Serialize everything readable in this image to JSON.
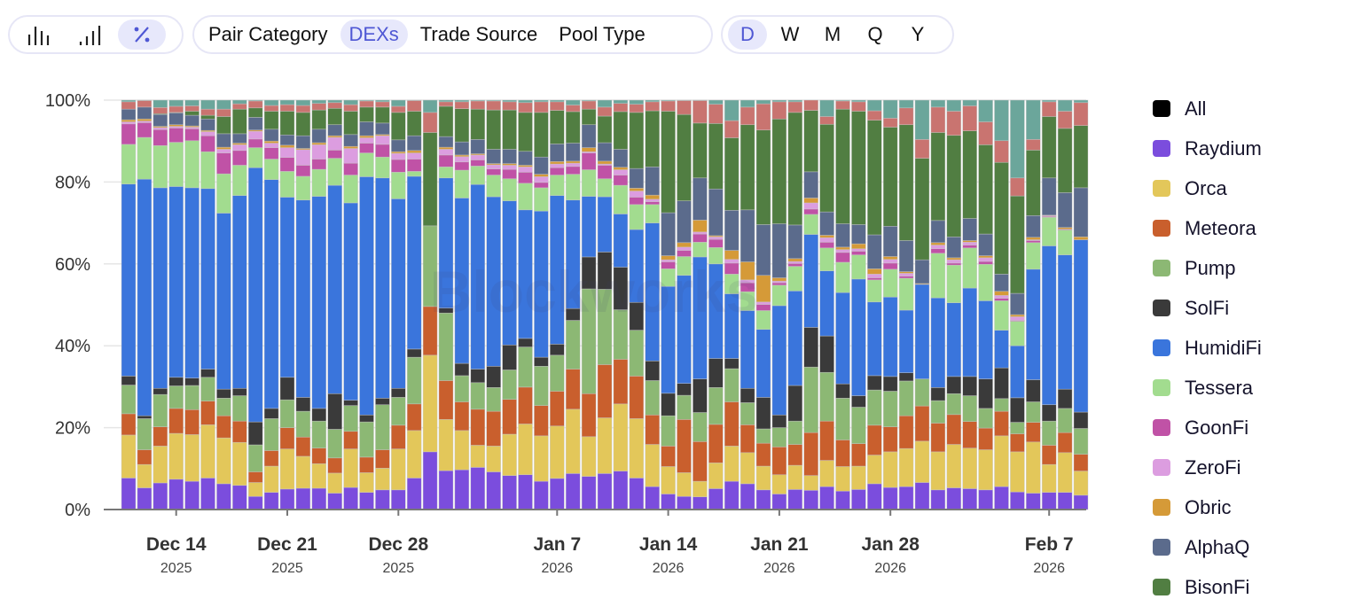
{
  "toolbar": {
    "chart_modes": [
      {
        "name": "grouped-bars-icon",
        "active": false
      },
      {
        "name": "stacked-bars-icon",
        "active": false
      },
      {
        "name": "percent-icon",
        "active": true
      }
    ],
    "breakdowns": [
      {
        "label": "Pair Category",
        "active": false
      },
      {
        "label": "DEXs",
        "active": true
      },
      {
        "label": "Trade Source",
        "active": false
      },
      {
        "label": "Pool Type",
        "active": false
      }
    ],
    "intervals": [
      {
        "label": "D",
        "active": true
      },
      {
        "label": "W",
        "active": false
      },
      {
        "label": "M",
        "active": false
      },
      {
        "label": "Q",
        "active": false
      },
      {
        "label": "Y",
        "active": false
      }
    ]
  },
  "legend": [
    {
      "label": "All",
      "color": "#000000"
    },
    {
      "label": "Raydium",
      "color": "#7b4ddd"
    },
    {
      "label": "Orca",
      "color": "#e3c75a"
    },
    {
      "label": "Meteora",
      "color": "#c95f2d"
    },
    {
      "label": "Pump",
      "color": "#8cb874"
    },
    {
      "label": "SolFi",
      "color": "#3a3a3a"
    },
    {
      "label": "HumidiFi",
      "color": "#3a75dc"
    },
    {
      "label": "Tessera",
      "color": "#a2dc8f"
    },
    {
      "label": "GoonFi",
      "color": "#c052a6"
    },
    {
      "label": "ZeroFi",
      "color": "#dc9de0"
    },
    {
      "label": "Obric",
      "color": "#d59a38"
    },
    {
      "label": "AlphaQ",
      "color": "#5b6b8c"
    },
    {
      "label": "BisonFi",
      "color": "#517e42"
    }
  ],
  "chart_data": {
    "type": "bar",
    "stacked": true,
    "normalized": true,
    "watermark": "Blockworks",
    "ylim": [
      0,
      100
    ],
    "y_ticks": [
      "0%",
      "20%",
      "40%",
      "60%",
      "80%",
      "100%"
    ],
    "y_tick_values": [
      0,
      20,
      40,
      60,
      80,
      100
    ],
    "grid": true,
    "legend_position": "right",
    "x_ticks": [
      {
        "label": "Dec 14",
        "year": "2025",
        "bar_index": 3
      },
      {
        "label": "Dec 21",
        "year": "2025",
        "bar_index": 10
      },
      {
        "label": "Dec 28",
        "year": "2025",
        "bar_index": 17
      },
      {
        "label": "Jan 7",
        "year": "2026",
        "bar_index": 27
      },
      {
        "label": "Jan 14",
        "year": "2026",
        "bar_index": 34
      },
      {
        "label": "Jan 21",
        "year": "2026",
        "bar_index": 41
      },
      {
        "label": "Jan 28",
        "year": "2026",
        "bar_index": 48
      },
      {
        "label": "Feb 7",
        "year": "2026",
        "bar_index": 58
      }
    ],
    "series": [
      {
        "name": "Raydium",
        "color": "#7b4ddd",
        "values": [
          7.7,
          5.3,
          6.5,
          7.4,
          6.9,
          7.7,
          6.3,
          5.9,
          3.2,
          4.2,
          5.0,
          5.2,
          5.2,
          4.0,
          5.4,
          4.2,
          4.8,
          4.8,
          7.7,
          14.1,
          9.5,
          9.7,
          10.3,
          9.2,
          8.3,
          8.5,
          6.9,
          7.6,
          8.8,
          8.1,
          8.8,
          9.4,
          7.7,
          5.6,
          3.8,
          3.2,
          3.1,
          5.1,
          6.9,
          6.3,
          4.8,
          3.8,
          4.9,
          4.7,
          5.6,
          4.5,
          4.9,
          6.3,
          5.4,
          5.6,
          6.6,
          4.8,
          5.3,
          5.1,
          4.8,
          5.6,
          4.3,
          4.0,
          4.2,
          4.2,
          3.5
        ]
      },
      {
        "name": "Orca",
        "color": "#e3c75a",
        "values": [
          10.5,
          5.7,
          9.0,
          11.2,
          11.4,
          13.0,
          11.2,
          10.5,
          3.4,
          6.4,
          9.8,
          7.8,
          6.0,
          4.9,
          9.4,
          4.8,
          5.3,
          10.0,
          11.6,
          23.6,
          12.5,
          9.6,
          5.4,
          6.3,
          10.1,
          12.4,
          11.1,
          12.8,
          15.7,
          9.7,
          13.6,
          16.4,
          14.5,
          10.3,
          6.7,
          5.8,
          3.8,
          6.3,
          8.6,
          7.6,
          5.8,
          4.7,
          5.9,
          3.6,
          6.4,
          6.0,
          5.7,
          7.0,
          8.7,
          9.3,
          10.1,
          9.3,
          10.6,
          9.9,
          9.8,
          12.4,
          9.8,
          12.5,
          6.8,
          9.7,
          5.9
        ]
      },
      {
        "name": "Meteora",
        "color": "#c95f2d",
        "values": [
          5.2,
          3.6,
          4.7,
          6.1,
          6.1,
          5.8,
          5.4,
          5.2,
          2.6,
          3.8,
          5.2,
          4.7,
          3.8,
          3.7,
          4.3,
          3.8,
          4.5,
          5.8,
          6.5,
          11.9,
          9.5,
          7.0,
          8.8,
          8.5,
          8.5,
          9.0,
          7.4,
          8.5,
          9.8,
          10.5,
          13.0,
          10.9,
          10.4,
          7.2,
          5.0,
          13.0,
          9.7,
          9.4,
          10.8,
          6.8,
          5.6,
          6.8,
          5.1,
          10.5,
          9.6,
          6.5,
          5.5,
          7.3,
          6.1,
          8.0,
          8.6,
          7.0,
          7.3,
          6.5,
          5.3,
          6.0,
          4.4,
          4.8,
          4.7,
          4.9,
          4.1
        ]
      },
      {
        "name": "Pump",
        "color": "#8cb874",
        "values": [
          7.0,
          7.6,
          7.9,
          5.5,
          5.9,
          5.8,
          4.3,
          6.2,
          6.6,
          7.8,
          6.8,
          6.3,
          6.6,
          7.0,
          6.3,
          8.6,
          11.0,
          6.8,
          11.4,
          19.7,
          16.5,
          6.4,
          6.5,
          5.8,
          7.2,
          9.8,
          9.6,
          8.8,
          11.9,
          25.6,
          18.4,
          12.1,
          11.2,
          8.4,
          7.4,
          5.9,
          7.1,
          9.0,
          8.1,
          5.4,
          3.5,
          4.7,
          5.7,
          16.0,
          11.9,
          10.2,
          8.9,
          8.6,
          8.7,
          8.5,
          6.6,
          5.5,
          5.1,
          6.3,
          4.8,
          3.1,
          2.8,
          5.0,
          5.9,
          5.9,
          6.3
        ]
      },
      {
        "name": "SolFi",
        "color": "#3a3a3a",
        "values": [
          2.2,
          0.7,
          1.5,
          2.1,
          1.8,
          2.0,
          2.2,
          1.8,
          5.6,
          2.5,
          5.5,
          3.4,
          3.1,
          8.7,
          1.3,
          1.7,
          1.6,
          2.2,
          2.0,
          0,
          1.2,
          3.0,
          3.3,
          5.2,
          6.1,
          2.1,
          2.2,
          2.7,
          2.9,
          7.8,
          9.1,
          10.4,
          6.8,
          4.8,
          5.5,
          2.9,
          8.2,
          7.1,
          2.5,
          3.5,
          7.7,
          3.1,
          8.7,
          9.7,
          8.9,
          3.5,
          2.8,
          3.5,
          3.6,
          2.0,
          0,
          3.2,
          4.2,
          4.7,
          7.2,
          7.5,
          6.0,
          5.4,
          4.0,
          4.7,
          4.0
        ]
      },
      {
        "name": "HumidiFi",
        "color": "#3a75dc",
        "values": [
          46.9,
          57.8,
          49.0,
          46.6,
          46.5,
          44.1,
          43.0,
          47.1,
          62.1,
          55.9,
          44.0,
          48.2,
          51.8,
          50.9,
          48.2,
          58.2,
          53.8,
          46.3,
          42.2,
          0,
          31.8,
          40.4,
          45.1,
          41.4,
          35.2,
          31.4,
          35.7,
          36.3,
          26.5,
          14.8,
          13.5,
          13.0,
          17.8,
          33.7,
          26.1,
          26.4,
          29.8,
          23.1,
          15.8,
          19.0,
          16.6,
          26.7,
          23.1,
          22.7,
          15.9,
          22.3,
          28.5,
          18.0,
          19.4,
          15.3,
          23.1,
          21.9,
          18.0,
          21.6,
          19.1,
          9.2,
          12.7,
          27.0,
          38.8,
          32.8,
          42.1
        ]
      },
      {
        "name": "Tessera",
        "color": "#a2dc8f",
        "values": [
          9.7,
          10.2,
          10.3,
          10.8,
          11.5,
          9.0,
          9.6,
          7.4,
          4.9,
          5.0,
          6.3,
          5.8,
          6.6,
          6.6,
          6.8,
          5.8,
          5.1,
          6.5,
          1.2,
          0,
          2.7,
          6.8,
          4.5,
          5.3,
          5.4,
          6.5,
          5.7,
          5.0,
          6.3,
          6.5,
          4.4,
          7.0,
          6.1,
          4.5,
          4.3,
          4.6,
          3.6,
          4.0,
          4.8,
          4.6,
          4.6,
          5.0,
          6.0,
          4.9,
          5.6,
          7.4,
          5.9,
          5.4,
          6.8,
          7.8,
          0,
          10.9,
          9.2,
          9.8,
          8.9,
          7.2,
          6.0,
          6.5,
          7.0,
          6.1,
          0
        ]
      },
      {
        "name": "GoonFi",
        "color": "#c052a6",
        "values": [
          5.0,
          3.6,
          3.9,
          3.5,
          2.9,
          3.9,
          5.1,
          3.6,
          2.1,
          2.8,
          3.4,
          2.7,
          2.5,
          2.0,
          2.9,
          2.4,
          3.1,
          3.1,
          3.0,
          0,
          2.9,
          2.0,
          1.5,
          1.5,
          2.3,
          2.7,
          1.3,
          1.8,
          1.9,
          4.1,
          3.3,
          2.5,
          1.8,
          0.7,
          1.7,
          1.5,
          2.0,
          2.0,
          2.7,
          2.2,
          1.5,
          0.6,
          0.7,
          1.3,
          1.4,
          2.4,
          0.9,
          0.5,
          1.5,
          0.5,
          0,
          1.1,
          0.5,
          0.7,
          0.7,
          0.6,
          0.2,
          0.5,
          0.2,
          0.2,
          0
        ]
      },
      {
        "name": "ZeroFi",
        "color": "#dc9de0",
        "values": [
          0.5,
          0.4,
          0.5,
          0.4,
          0.4,
          1.0,
          0.9,
          1.4,
          1.9,
          1.1,
          2.4,
          3.8,
          3.5,
          3.1,
          3.6,
          1.3,
          2.1,
          1.5,
          1.5,
          0,
          1.4,
          1.3,
          1.2,
          1.0,
          1.0,
          1.3,
          1.4,
          0.9,
          0.8,
          0.3,
          0.3,
          1.3,
          1.5,
          0.6,
          0.5,
          0.8,
          0.5,
          0.6,
          0.9,
          0.7,
          0.6,
          0.4,
          0.5,
          1.5,
          1.1,
          0.7,
          0.6,
          0.9,
          0.9,
          0.7,
          0,
          0.9,
          0.8,
          0.7,
          0.9,
          0.7,
          0.9,
          0.2,
          0.2,
          0,
          0
        ]
      },
      {
        "name": "Obric",
        "color": "#d59a38",
        "values": [
          0.5,
          0.5,
          0.3,
          0.4,
          0.3,
          0.3,
          0.5,
          0.4,
          0.3,
          0.5,
          0.6,
          0.3,
          0.5,
          0.4,
          0.5,
          0.5,
          0.3,
          0.4,
          0.6,
          0,
          0.5,
          0.4,
          0.3,
          0.3,
          0.4,
          0.4,
          0.6,
          0.6,
          0.5,
          1.0,
          0.7,
          0.6,
          0.7,
          1.0,
          1.0,
          1.1,
          2.9,
          0.3,
          2.2,
          4.4,
          6.5,
          0.8,
          0.7,
          1.2,
          0.6,
          0.6,
          1.2,
          1.3,
          0.7,
          0.4,
          0.2,
          0.6,
          0.5,
          0.4,
          0.5,
          1.0,
          0.5,
          0.6,
          0.1,
          0.4,
          0.7
        ]
      },
      {
        "name": "AlphaQ",
        "color": "#5b6b8c",
        "values": [
          2.6,
          2.9,
          2.9,
          2.9,
          2.6,
          2.8,
          3.3,
          2.3,
          3.1,
          2.9,
          2.5,
          3.1,
          3.3,
          2.7,
          2.9,
          3.4,
          2.8,
          2.9,
          3.6,
          0,
          2.6,
          3.2,
          3.5,
          3.5,
          3.5,
          3.4,
          4.2,
          4.3,
          4.4,
          5.6,
          4.5,
          4.4,
          4.8,
          6.9,
          10.5,
          10.2,
          10.3,
          11.4,
          9.8,
          12.7,
          12.4,
          13.2,
          8.2,
          6.4,
          5.7,
          5.7,
          4.7,
          8.3,
          7.4,
          7.6,
          5.8,
          5.4,
          5.1,
          5.4,
          5.3,
          4.2,
          5.2,
          5.3,
          9.1,
          8.5,
          12.0
        ]
      },
      {
        "name": "BisonFi",
        "color": "#517e42",
        "values": [
          0,
          0,
          0.2,
          0.1,
          1.0,
          0.9,
          4.2,
          6.0,
          2.3,
          4.4,
          5.8,
          5.7,
          4.7,
          4.0,
          5.7,
          3.6,
          3.9,
          6.7,
          6.0,
          22.8,
          7.4,
          8.1,
          7.4,
          9.6,
          9.6,
          9.5,
          10.9,
          8.2,
          7.7,
          3.8,
          6.5,
          9.2,
          13.7,
          13.7,
          24.8,
          21.1,
          13.4,
          16.0,
          17.7,
          20.8,
          23.1,
          25.6,
          27.5,
          15.0,
          21.4,
          28.0,
          27.7,
          28.0,
          24.2,
          28.3,
          24.8,
          21.5,
          24.8,
          21.4,
          21.8,
          27.3,
          23.8,
          16.0,
          15.0,
          15.7,
          15.2
        ]
      },
      {
        "name": "",
        "color": "#c97470",
        "values": [
          1.8,
          1.6,
          1.5,
          1.5,
          1.3,
          1.5,
          1.8,
          1.3,
          1.7,
          1.4,
          1.6,
          1.7,
          1.6,
          1.4,
          1.6,
          1.5,
          1.3,
          1.5,
          2.6,
          4.9,
          1.1,
          1.7,
          2.0,
          2.2,
          2.0,
          2.4,
          2.6,
          2.1,
          1.6,
          2.0,
          2.2,
          2.0,
          2.0,
          2.2,
          2.5,
          3.4,
          5.5,
          4.7,
          4.2,
          4.3,
          6.4,
          4.2,
          2.6,
          2.5,
          1.9,
          2.0,
          2.3,
          2.3,
          2.2,
          4.1,
          4.6,
          6.2,
          5.9,
          6.1,
          5.6,
          5.3,
          4.4,
          2.6,
          3.6,
          4.2,
          5.6
        ]
      },
      {
        "name": "",
        "color": "#6ba69b",
        "values": [
          0.4,
          0.1,
          1.8,
          1.5,
          1.4,
          2.2,
          2.2,
          0.9,
          0.2,
          1.3,
          1.1,
          1.3,
          0.8,
          0.6,
          1.1,
          0.2,
          0.4,
          1.5,
          0.1,
          3.0,
          0.4,
          0.4,
          0.2,
          0.2,
          0.4,
          0.6,
          0.4,
          0.4,
          1.2,
          0.2,
          1.7,
          0.8,
          1.0,
          0.4,
          0.2,
          0.1,
          0.1,
          1.0,
          5.0,
          1.7,
          0.9,
          0.4,
          0.4,
          0,
          4.0,
          0.2,
          0.4,
          2.6,
          4.4,
          1.9,
          9.6,
          1.7,
          2.7,
          1.4,
          5.3,
          9.9,
          19.0,
          9.6,
          0.4,
          2.7,
          0.6
        ]
      }
    ]
  }
}
